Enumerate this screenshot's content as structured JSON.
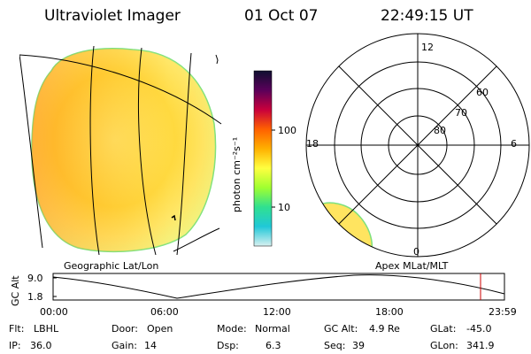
{
  "header": {
    "title": "Ultraviolet Imager",
    "date": "01 Oct 07",
    "time": "22:49:15 UT"
  },
  "colorbar": {
    "unit_label": "photon cm⁻²s⁻¹",
    "ticks": [
      "100",
      "10"
    ],
    "colors": [
      "#101030",
      "#5a005a",
      "#c8003c",
      "#ff6000",
      "#ffb000",
      "#ffff40",
      "#a0ff30",
      "#30e090",
      "#20c8d8",
      "#d8f0f0"
    ]
  },
  "polar": {
    "mlt_labels": {
      "top": "12",
      "left": "18",
      "right": "6",
      "bottom": "0"
    },
    "lat_labels": [
      "60",
      "70",
      "80"
    ]
  },
  "panels": {
    "left_label": "Geographic Lat/Lon",
    "right_label": "Apex MLat/MLT"
  },
  "timeline": {
    "y_axis_label": "GC Alt",
    "y_ticks": [
      "9.0",
      "1.8"
    ],
    "x_ticks": [
      "00:00",
      "06:00",
      "12:00",
      "18:00",
      "23:59"
    ],
    "marker_color": "#cc0000"
  },
  "info": {
    "flt": {
      "label": "Flt:",
      "value": "LBHL"
    },
    "ip": {
      "label": "IP:",
      "value": "36.0"
    },
    "door": {
      "label": "Door:",
      "value": "Open"
    },
    "gain": {
      "label": "Gain:",
      "value": "14"
    },
    "mode": {
      "label": "Mode:",
      "value": "Normal"
    },
    "dsp": {
      "label": "Dsp:",
      "value": "6.3"
    },
    "gcalt": {
      "label": "GC Alt:",
      "value": "4.9 Re"
    },
    "seq": {
      "label": "Seq:",
      "value": "39"
    },
    "glat": {
      "label": "GLat:",
      "value": "-45.0"
    },
    "glon": {
      "label": "GLon:",
      "value": "341.9"
    }
  }
}
